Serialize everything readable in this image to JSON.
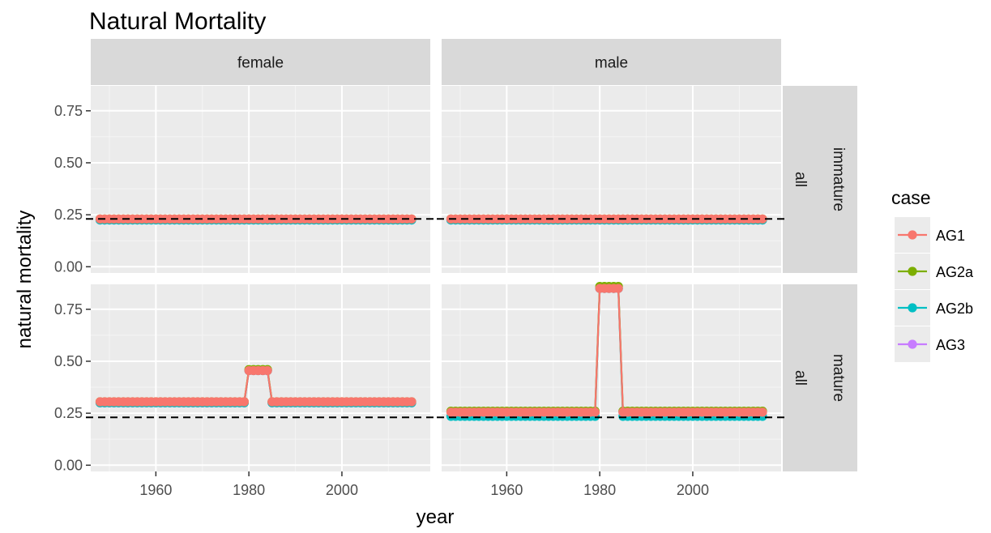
{
  "chart_data": {
    "type": "line",
    "title": "Natural Mortality",
    "xlabel": "year",
    "ylabel": "natural mortality",
    "xlim": [
      1946,
      2019
    ],
    "ylim": [
      -0.03,
      0.87
    ],
    "x_ticks": [
      1960,
      1980,
      2000
    ],
    "y_ticks": [
      0.0,
      0.25,
      0.5,
      0.75
    ],
    "y_tick_labels": [
      "0.00",
      "0.25",
      "0.50",
      "0.75"
    ],
    "facet_columns": [
      "female",
      "male"
    ],
    "facet_rows": [
      {
        "label1": "immature",
        "label2": "all"
      },
      {
        "label1": "mature",
        "label2": "all"
      }
    ],
    "reference_line": 0.23,
    "grid": true,
    "legend": {
      "title": "case",
      "placement": "right",
      "entries": [
        {
          "name": "AG1",
          "color": "#F8766D"
        },
        {
          "name": "AG2a",
          "color": "#7CAE00"
        },
        {
          "name": "AG2b",
          "color": "#00BFC4"
        },
        {
          "name": "AG3",
          "color": "#C77CFF"
        }
      ]
    },
    "x_range": [
      1948,
      2015
    ],
    "panels": [
      {
        "col": 0,
        "row": 0,
        "series": [
          {
            "name": "AG3",
            "color": "#C77CFF",
            "segments": [
              {
                "from": 1948,
                "to": 2015,
                "value": 0.225
              }
            ]
          },
          {
            "name": "AG2b",
            "color": "#00BFC4",
            "segments": [
              {
                "from": 1948,
                "to": 2015,
                "value": 0.225
              }
            ]
          },
          {
            "name": "AG2a",
            "color": "#7CAE00",
            "segments": [
              {
                "from": 1948,
                "to": 2015,
                "value": 0.23
              }
            ]
          },
          {
            "name": "AG1",
            "color": "#F8766D",
            "segments": [
              {
                "from": 1948,
                "to": 2015,
                "value": 0.23
              }
            ]
          }
        ]
      },
      {
        "col": 1,
        "row": 0,
        "series": [
          {
            "name": "AG3",
            "color": "#C77CFF",
            "segments": [
              {
                "from": 1948,
                "to": 2015,
                "value": 0.225
              }
            ]
          },
          {
            "name": "AG2b",
            "color": "#00BFC4",
            "segments": [
              {
                "from": 1948,
                "to": 2015,
                "value": 0.225
              }
            ]
          },
          {
            "name": "AG2a",
            "color": "#7CAE00",
            "segments": [
              {
                "from": 1948,
                "to": 2015,
                "value": 0.23
              }
            ]
          },
          {
            "name": "AG1",
            "color": "#F8766D",
            "segments": [
              {
                "from": 1948,
                "to": 2015,
                "value": 0.23
              }
            ]
          }
        ]
      },
      {
        "col": 0,
        "row": 1,
        "series": [
          {
            "name": "AG3",
            "color": "#C77CFF",
            "segments": [
              {
                "from": 1948,
                "to": 1979,
                "value": 0.3
              },
              {
                "from": 1980,
                "to": 1984,
                "value": 0.455
              },
              {
                "from": 1985,
                "to": 2015,
                "value": 0.3
              }
            ]
          },
          {
            "name": "AG2b",
            "color": "#00BFC4",
            "segments": [
              {
                "from": 1948,
                "to": 1979,
                "value": 0.3
              },
              {
                "from": 1980,
                "to": 1984,
                "value": 0.455
              },
              {
                "from": 1985,
                "to": 2015,
                "value": 0.3
              }
            ]
          },
          {
            "name": "AG2a",
            "color": "#7CAE00",
            "segments": [
              {
                "from": 1948,
                "to": 1979,
                "value": 0.305
              },
              {
                "from": 1980,
                "to": 1984,
                "value": 0.46
              },
              {
                "from": 1985,
                "to": 2015,
                "value": 0.305
              }
            ]
          },
          {
            "name": "AG1",
            "color": "#F8766D",
            "segments": [
              {
                "from": 1948,
                "to": 1979,
                "value": 0.305
              },
              {
                "from": 1980,
                "to": 1984,
                "value": 0.455
              },
              {
                "from": 1985,
                "to": 2015,
                "value": 0.305
              }
            ]
          }
        ]
      },
      {
        "col": 1,
        "row": 1,
        "series": [
          {
            "name": "AG3",
            "color": "#C77CFF",
            "segments": [
              {
                "from": 1948,
                "to": 1979,
                "value": 0.255
              },
              {
                "from": 1980,
                "to": 1984,
                "value": 0.85
              },
              {
                "from": 1985,
                "to": 2015,
                "value": 0.255
              }
            ]
          },
          {
            "name": "AG2b",
            "color": "#00BFC4",
            "segments": [
              {
                "from": 1948,
                "to": 1979,
                "value": 0.235
              },
              {
                "from": 1980,
                "to": 1984,
                "value": 0.85
              },
              {
                "from": 1985,
                "to": 2015,
                "value": 0.235
              }
            ]
          },
          {
            "name": "AG2a",
            "color": "#7CAE00",
            "segments": [
              {
                "from": 1948,
                "to": 1979,
                "value": 0.26
              },
              {
                "from": 1980,
                "to": 1984,
                "value": 0.86
              },
              {
                "from": 1985,
                "to": 2015,
                "value": 0.26
              }
            ]
          },
          {
            "name": "AG1",
            "color": "#F8766D",
            "segments": [
              {
                "from": 1948,
                "to": 1979,
                "value": 0.255
              },
              {
                "from": 1980,
                "to": 1984,
                "value": 0.85
              },
              {
                "from": 1985,
                "to": 2015,
                "value": 0.255
              }
            ]
          }
        ]
      }
    ]
  }
}
